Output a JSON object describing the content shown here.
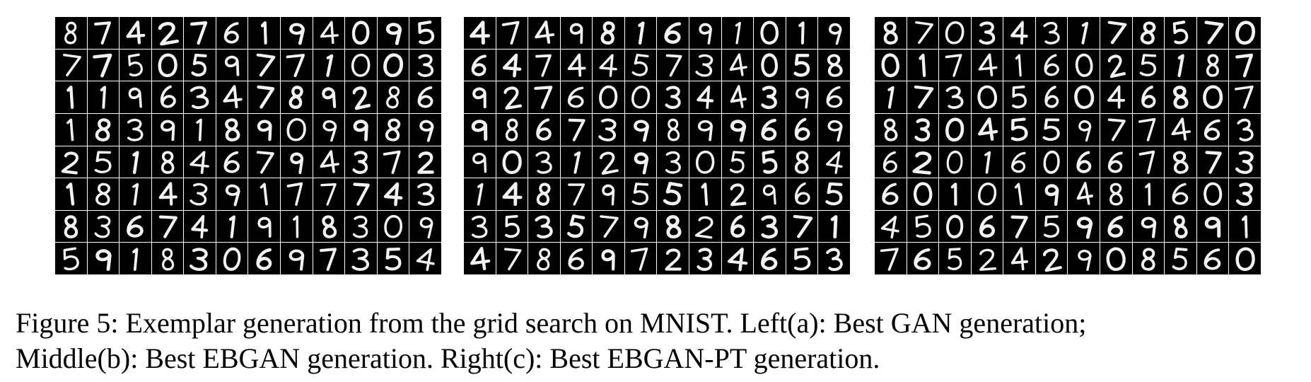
{
  "figure": {
    "panels": [
      {
        "name": "Left(a)",
        "rows": [
          "874276194095",
          "775059771003",
          "119634789286",
          "183918909989",
          "251846794372",
          "181439177743",
          "836741918309",
          "591830697354"
        ]
      },
      {
        "name": "Middle(b)",
        "rows": [
          "474981691019",
          "647445734058",
          "927600344396",
          "986739899669",
          "903129305584",
          "148795512965",
          "353579826371",
          "478697234653"
        ]
      },
      {
        "name": "Right(c)",
        "rows": [
          "870343178570",
          "017416025187",
          "173056046807",
          "830455977463",
          "620160667873",
          "601019481603",
          "450675969891",
          "765242908560"
        ]
      }
    ],
    "caption_line1": "Figure 5: Exemplar generation from the grid search on MNIST. Left(a): Best GAN generation;",
    "caption_line2": "Middle(b): Best EBGAN generation. Right(c): Best EBGAN-PT generation."
  }
}
